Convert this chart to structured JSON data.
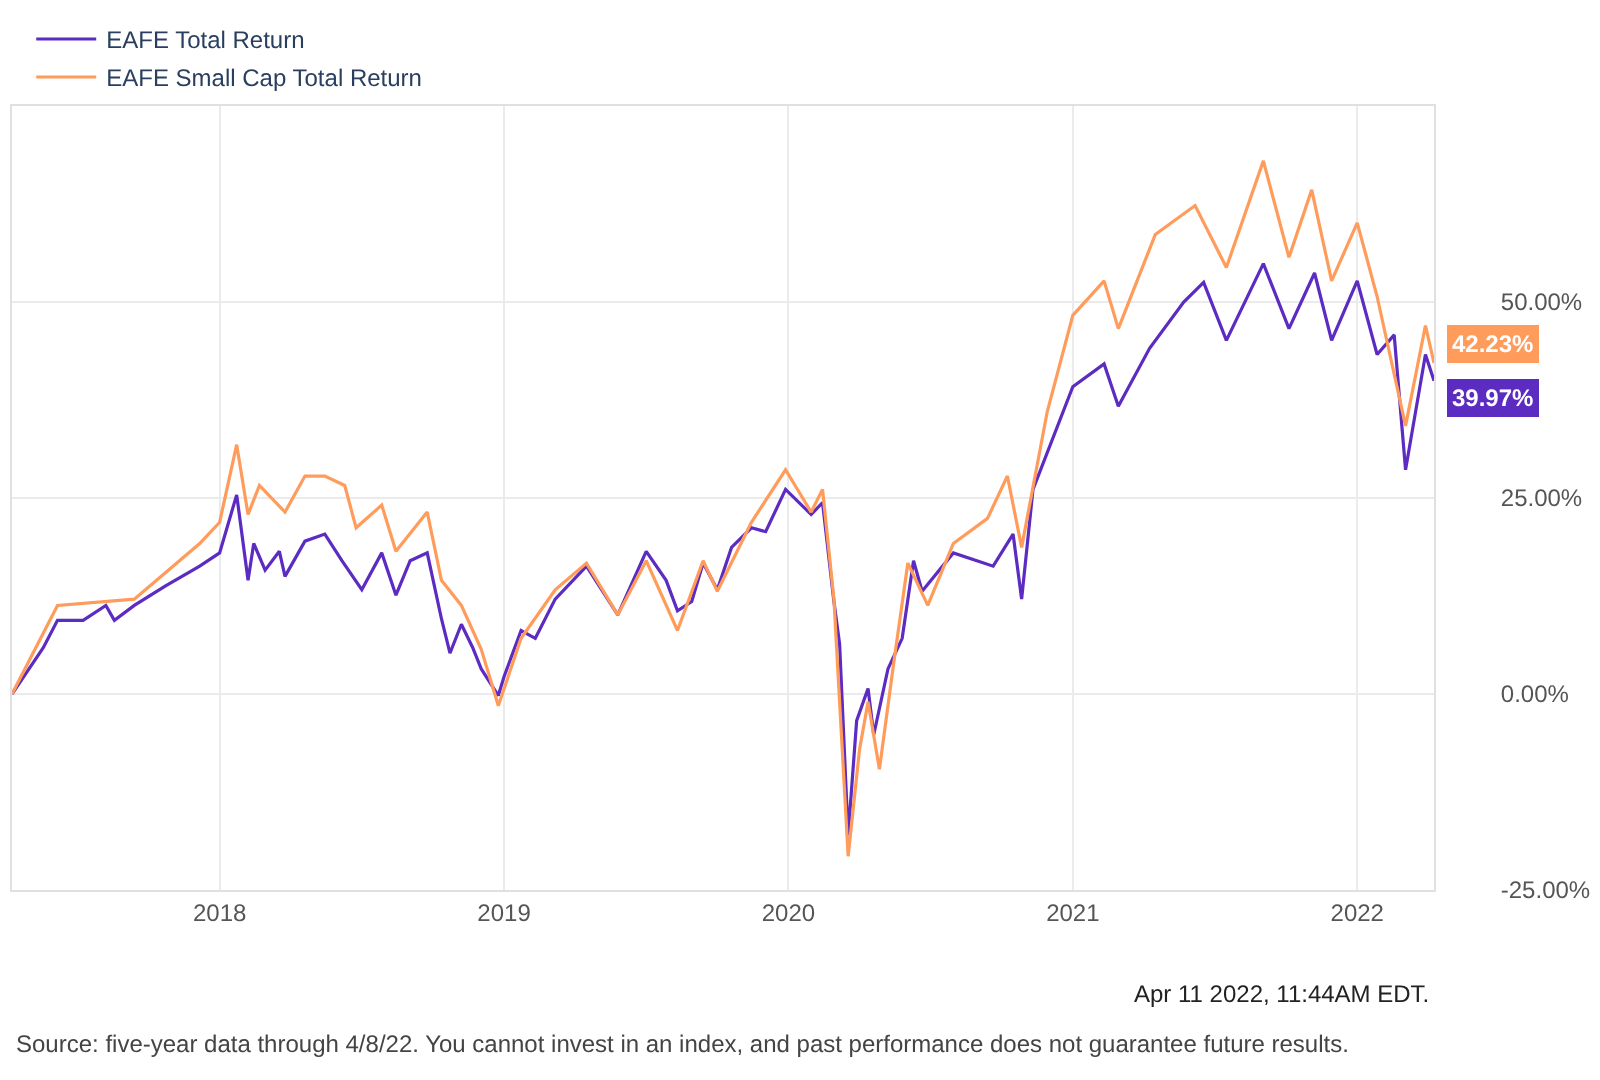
{
  "chart_data": {
    "type": "line",
    "series": [
      {
        "name": "EAFE Total Return",
        "color": "#5b2bc2",
        "x": [
          2017.27,
          2017.38,
          2017.43,
          2017.52,
          2017.6,
          2017.63,
          2017.7,
          2017.81,
          2017.93,
          2018.0,
          2018.06,
          2018.1,
          2018.12,
          2018.16,
          2018.21,
          2018.23,
          2018.3,
          2018.37,
          2018.43,
          2018.5,
          2018.57,
          2018.62,
          2018.67,
          2018.73,
          2018.78,
          2018.81,
          2018.85,
          2018.89,
          2018.92,
          2018.98,
          2019.0,
          2019.06,
          2019.11,
          2019.18,
          2019.29,
          2019.4,
          2019.5,
          2019.57,
          2019.61,
          2019.66,
          2019.7,
          2019.75,
          2019.8,
          2019.87,
          2019.92,
          2019.99,
          2020.08,
          2020.12,
          2020.16,
          2020.18,
          2020.21,
          2020.24,
          2020.28,
          2020.3,
          2020.35,
          2020.4,
          2020.44,
          2020.47,
          2020.58,
          2020.72,
          2020.79,
          2020.82,
          2020.86,
          2021.0,
          2021.11,
          2021.16,
          2021.27,
          2021.39,
          2021.46,
          2021.54,
          2021.67,
          2021.76,
          2021.85,
          2021.91,
          2022.0,
          2022.07,
          2022.13,
          2022.17,
          2022.24,
          2022.27
        ],
        "values": [
          0,
          5.9,
          9.4,
          9.4,
          11.3,
          9.4,
          11.3,
          13.8,
          16.3,
          18.0,
          25.4,
          14.5,
          19.2,
          15.8,
          18.2,
          15.0,
          19.5,
          20.4,
          17.0,
          13.3,
          18.0,
          12.6,
          17.0,
          18.0,
          9.6,
          5.2,
          8.9,
          5.9,
          3.2,
          -0.2,
          2.2,
          8.1,
          7.1,
          12.1,
          16.3,
          10.1,
          18.2,
          14.5,
          10.6,
          11.8,
          16.7,
          13.3,
          18.7,
          21.2,
          20.7,
          26.1,
          22.9,
          24.4,
          11.8,
          6.4,
          -18.0,
          -3.4,
          0.7,
          -5.2,
          3.2,
          7.1,
          17.0,
          13.1,
          18.0,
          16.3,
          20.4,
          12.1,
          26.1,
          39.2,
          42.1,
          36.7,
          44.1,
          50.0,
          52.5,
          45.1,
          54.9,
          46.6,
          53.7,
          45.1,
          52.7,
          43.3,
          45.8,
          28.6,
          43.3,
          39.97
        ],
        "value_labels": [
          null,
          null,
          null,
          null,
          null,
          null,
          null,
          null,
          null,
          null,
          null,
          null,
          null,
          null,
          null,
          null,
          null,
          null,
          null,
          null,
          null,
          null,
          null,
          null,
          null,
          null,
          null,
          null,
          null,
          null,
          null,
          null,
          null,
          null,
          null,
          null,
          null,
          null,
          null,
          null,
          null,
          null,
          null,
          null,
          null,
          null,
          null,
          null,
          null,
          null,
          null,
          null,
          null,
          null,
          null,
          null,
          null,
          null,
          null,
          null,
          null,
          null,
          null,
          null,
          null,
          null,
          null,
          null,
          null,
          null,
          null,
          null,
          null,
          null,
          null,
          null,
          null,
          null,
          null,
          "39.97%"
        ]
      },
      {
        "name": "EAFE Small Cap Total Return",
        "color": "#ff9c5b",
        "x": [
          2017.27,
          2017.43,
          2017.7,
          2017.93,
          2018.0,
          2018.06,
          2018.1,
          2018.14,
          2018.23,
          2018.3,
          2018.37,
          2018.44,
          2018.48,
          2018.57,
          2018.62,
          2018.73,
          2018.78,
          2018.85,
          2018.92,
          2018.98,
          2019.06,
          2019.18,
          2019.29,
          2019.4,
          2019.5,
          2019.61,
          2019.7,
          2019.75,
          2019.87,
          2019.99,
          2020.08,
          2020.12,
          2020.16,
          2020.21,
          2020.25,
          2020.28,
          2020.32,
          2020.37,
          2020.42,
          2020.49,
          2020.58,
          2020.7,
          2020.77,
          2020.82,
          2020.91,
          2021.0,
          2021.11,
          2021.16,
          2021.29,
          2021.43,
          2021.54,
          2021.67,
          2021.76,
          2021.84,
          2021.91,
          2022.0,
          2022.07,
          2022.17,
          2022.24,
          2022.27
        ],
        "values": [
          0,
          11.3,
          12.1,
          19.2,
          21.9,
          31.8,
          22.9,
          26.6,
          23.2,
          27.8,
          27.8,
          26.6,
          21.2,
          24.1,
          18.2,
          23.2,
          14.5,
          11.3,
          5.7,
          -1.5,
          7.1,
          13.3,
          16.7,
          10.1,
          17.0,
          8.1,
          17.0,
          13.1,
          21.9,
          28.6,
          23.2,
          26.1,
          12.1,
          -20.7,
          -7.1,
          -1.0,
          -9.6,
          3.9,
          16.7,
          11.3,
          19.2,
          22.4,
          27.8,
          18.7,
          36.0,
          48.3,
          52.7,
          46.6,
          58.6,
          62.3,
          54.4,
          68.0,
          55.7,
          64.3,
          52.7,
          60.1,
          50.7,
          34.2,
          47.0,
          42.23
        ],
        "value_labels": [
          null,
          null,
          null,
          null,
          null,
          null,
          null,
          null,
          null,
          null,
          null,
          null,
          null,
          null,
          null,
          null,
          null,
          null,
          null,
          null,
          null,
          null,
          null,
          null,
          null,
          null,
          null,
          null,
          null,
          null,
          null,
          null,
          null,
          null,
          null,
          null,
          null,
          null,
          null,
          null,
          null,
          null,
          null,
          null,
          null,
          null,
          null,
          null,
          null,
          null,
          null,
          null,
          null,
          null,
          null,
          null,
          null,
          null,
          null,
          "42.23%"
        ]
      }
    ],
    "xlim": [
      2017.27,
      2022.27
    ],
    "xticks": [
      {
        "value": 2018,
        "label": "2018"
      },
      {
        "value": 2019,
        "label": "2019"
      },
      {
        "value": 2020,
        "label": "2020"
      },
      {
        "value": 2021,
        "label": "2021"
      },
      {
        "value": 2022,
        "label": "2022"
      }
    ],
    "ylim": [
      -25,
      75
    ],
    "yticks": [
      {
        "value": -25,
        "label": "-25.00%"
      },
      {
        "value": 0,
        "label": "0.00%"
      },
      {
        "value": 25,
        "label": "25.00%"
      },
      {
        "value": 50,
        "label": "50.00%"
      }
    ],
    "grid": true,
    "legend": "top left",
    "marker": "none",
    "line_style": "solid",
    "annotations": [
      "Apr 11 2022, 11:44AM EDT.",
      "Source: five-year data through 4/8/22. You cannot invest in an index, and past performance does not guarantee future results."
    ]
  }
}
